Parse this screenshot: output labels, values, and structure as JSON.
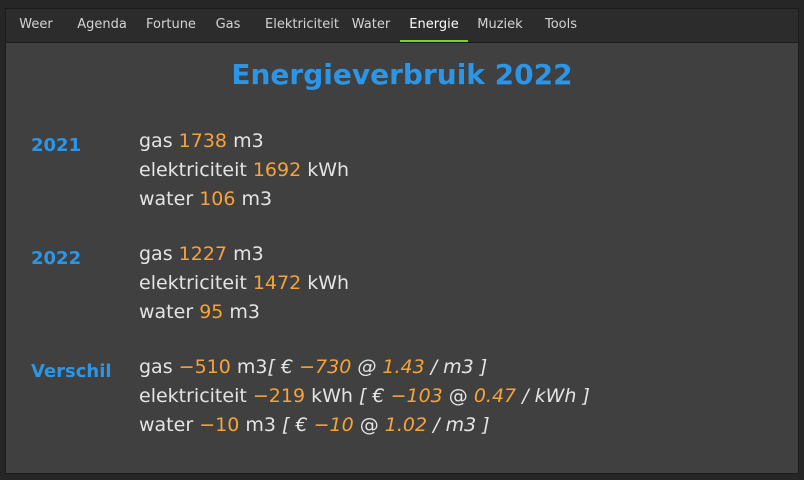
{
  "tabs": [
    {
      "label": "Weer"
    },
    {
      "label": "Agenda"
    },
    {
      "label": "Fortune"
    },
    {
      "label": "Gas"
    },
    {
      "label": "Elektriciteit"
    },
    {
      "label": "Water"
    },
    {
      "label": "Energie"
    },
    {
      "label": "Muziek"
    },
    {
      "label": "Tools"
    }
  ],
  "active_tab": "Energie",
  "colors": {
    "accent": "#2b96e8",
    "value": "#f5a33a",
    "active_tab_underline": "#7ed321"
  },
  "title": "Energieverbruik 2022",
  "sections": [
    {
      "label": "2021",
      "lines": [
        {
          "name": "gas",
          "value": "1738",
          "unit": "m3"
        },
        {
          "name": "elektriciteit",
          "value": "1692",
          "unit": "kWh"
        },
        {
          "name": "water",
          "value": "106",
          "unit": "m3"
        }
      ]
    },
    {
      "label": "2022",
      "lines": [
        {
          "name": "gas",
          "value": "1227",
          "unit": "m3"
        },
        {
          "name": "elektriciteit",
          "value": "1472",
          "unit": "kWh"
        },
        {
          "name": "water",
          "value": "95",
          "unit": "m3"
        }
      ]
    },
    {
      "label": "Verschil",
      "lines": [
        {
          "name": "gas",
          "value": "−510",
          "unit": "m3",
          "cost": "−730",
          "price": "1.43",
          "price_unit": "m3"
        },
        {
          "name": "elektriciteit",
          "value": "−219",
          "unit": "kWh",
          "cost": "−103",
          "price": "0.47",
          "price_unit": "kWh"
        },
        {
          "name": "water",
          "value": "−10",
          "unit": "m3",
          "cost": "−10",
          "price": "1.02",
          "price_unit": "m3"
        }
      ]
    }
  ]
}
